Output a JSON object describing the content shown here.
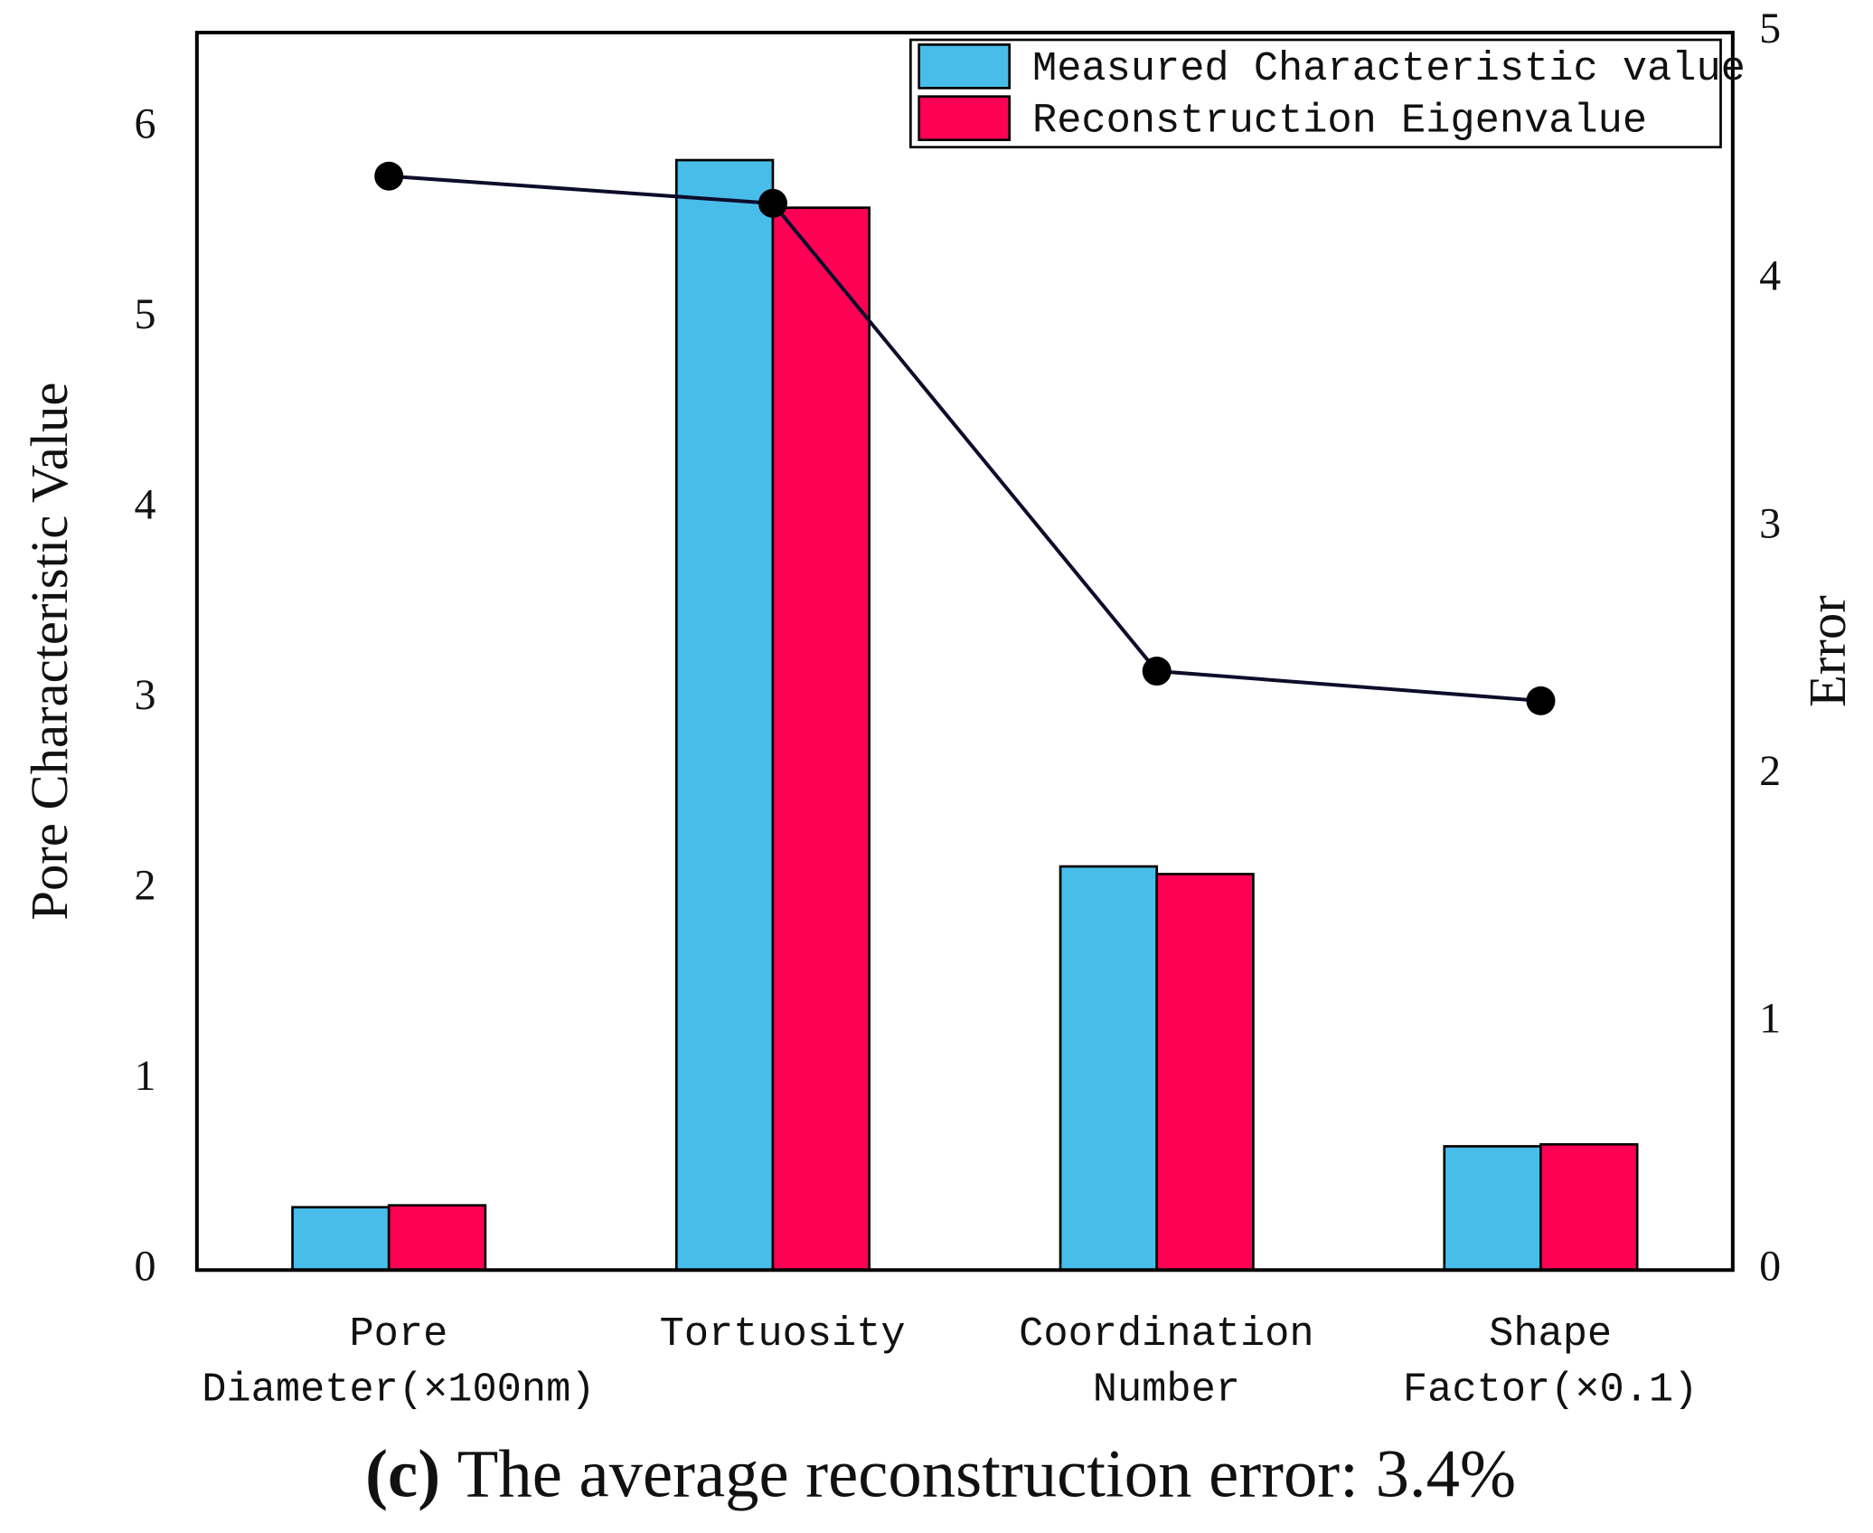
{
  "chart_data": {
    "type": "bar",
    "categories": [
      [
        "Pore",
        "Diameter(×100nm)"
      ],
      [
        "Tortuosity"
      ],
      [
        "Coordination",
        "Number"
      ],
      [
        "Shape",
        "Factor(×0.1)"
      ]
    ],
    "series": [
      {
        "name": "Measured Characteristic value",
        "color": "#48bdea",
        "values": [
          0.33,
          5.83,
          2.12,
          0.65
        ]
      },
      {
        "name": "Reconstruction Eigenvalue",
        "color": "#ff0055",
        "values": [
          0.34,
          5.58,
          2.08,
          0.66
        ]
      },
      {
        "type": "line",
        "axis": "y2",
        "color": "#0d0d2b",
        "values": [
          4.42,
          4.31,
          2.42,
          2.3
        ]
      }
    ],
    "ylabel": "Pore Characteristic Value",
    "y2label": "Error",
    "ylim": [
      0,
      6.5
    ],
    "yticks": [
      0,
      1,
      2,
      3,
      4,
      5,
      6
    ],
    "y2lim": [
      0,
      5
    ],
    "y2ticks": [
      0,
      1,
      2,
      3,
      4,
      5
    ],
    "legend": "upper right",
    "caption_label": "(c)",
    "caption": "The average reconstruction error: 3.4%"
  }
}
